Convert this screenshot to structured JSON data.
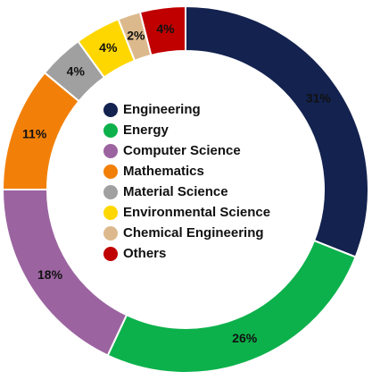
{
  "chart_data": {
    "type": "donut",
    "categories": [
      "Engineering",
      "Energy",
      "Computer Science",
      "Mathematics",
      "Material Science",
      "Environmental Science",
      "Chemical Engineering",
      "Others"
    ],
    "values": [
      31,
      26,
      18,
      11,
      4,
      4,
      2,
      4
    ],
    "value_labels": [
      "31%",
      "26%",
      "18%",
      "11%",
      "4%",
      "4%",
      "2%",
      "4%"
    ],
    "colors": [
      "#13224f",
      "#0cb14b",
      "#9b64a0",
      "#f28008",
      "#a0a0a0",
      "#ffd700",
      "#dcb98c",
      "#c00000"
    ],
    "legend": "center"
  }
}
